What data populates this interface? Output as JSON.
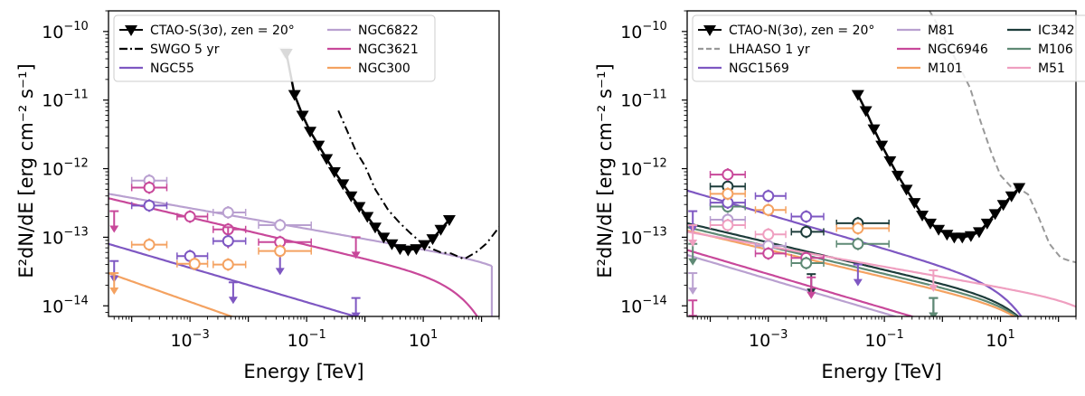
{
  "chart_data": [
    {
      "type": "line",
      "xscale": "log",
      "yscale": "log",
      "xlim": [
        4e-05,
        200
      ],
      "ylim": [
        7e-15,
        2e-10
      ],
      "xlabel": "Energy [TeV]",
      "ylabel": "E²dN/dE [erg cm⁻² s⁻¹]",
      "xticks": [
        {
          "v": 0.001,
          "m": "10",
          "e": "−3"
        },
        {
          "v": 0.1,
          "m": "10",
          "e": "−1"
        },
        {
          "v": 10,
          "m": "10",
          "e": "1"
        }
      ],
      "yticks": [
        {
          "v": 1e-14,
          "m": "10",
          "e": "−14"
        },
        {
          "v": 1e-13,
          "m": "10",
          "e": "−13"
        },
        {
          "v": 1e-12,
          "m": "10",
          "e": "−12"
        },
        {
          "v": 1e-11,
          "m": "10",
          "e": "−11"
        },
        {
          "v": 1e-10,
          "m": "10",
          "e": "−10"
        }
      ],
      "legend": {
        "position": "upper-left",
        "columns": 2,
        "entries": [
          {
            "label": "CTAO-S(3σ), zen = 20°",
            "kind": "sensitivity",
            "color": "#000000"
          },
          {
            "label": "NGC6822",
            "kind": "line",
            "color": "#b9a0d0"
          },
          {
            "label": "SWGO 5 yr",
            "kind": "dashdot",
            "color": "#000000"
          },
          {
            "label": "NGC3621",
            "kind": "line",
            "color": "#c8489a"
          },
          {
            "label": "NGC55",
            "kind": "line",
            "color": "#7e57c2"
          },
          {
            "label": "NGC300",
            "kind": "line",
            "color": "#f4a261"
          }
        ]
      },
      "instrument": {
        "name": "CTAO-S(3σ), zen = 20°",
        "color": "#000000",
        "x": [
          0.045,
          0.062,
          0.085,
          0.115,
          0.16,
          0.22,
          0.3,
          0.42,
          0.58,
          0.8,
          1.1,
          1.5,
          2.1,
          2.9,
          4.0,
          5.5,
          7.6,
          10.5,
          14.5,
          20,
          28
        ],
        "y": [
          4.8e-11,
          1.2e-11,
          6e-12,
          3.5e-12,
          2.2e-12,
          1.4e-12,
          9e-13,
          6e-13,
          4e-13,
          2.8e-13,
          2e-13,
          1.4e-13,
          1e-13,
          8e-14,
          6.8e-14,
          6.5e-14,
          6.8e-14,
          7.8e-14,
          9.5e-14,
          1.3e-13,
          1.8e-13
        ],
        "low_energy_extension": {
          "x": [
            0.042,
            0.045
          ],
          "y": [
            5e-11,
            4.8e-11
          ],
          "color": "#c8c8c8"
        }
      },
      "reference": {
        "name": "SWGO 5 yr",
        "style": "dashdot",
        "color": "#000000",
        "x": [
          0.35,
          0.5,
          0.7,
          1.0,
          1.5,
          2.5,
          4,
          6,
          9,
          14,
          20,
          30,
          50,
          80,
          120,
          200
        ],
        "y": [
          7e-12,
          3.5e-12,
          1.8e-12,
          1.1e-12,
          5e-13,
          2.5e-13,
          1.6e-13,
          1.15e-13,
          8.5e-14,
          6.8e-14,
          6e-14,
          5.8e-14,
          4.8e-14,
          6e-14,
          8e-14,
          1.4e-13
        ]
      },
      "series": [
        {
          "name": "NGC6822",
          "color": "#b9a0d0",
          "model": {
            "norm": 4.3e-13,
            "index": 2.15,
            "cutoff": 1000
          },
          "xmax": 150,
          "points": [
            {
              "x": 0.0002,
              "y": 6.7e-13,
              "xerr": [
                0.0001,
                0.0004
              ]
            },
            {
              "x": 0.0045,
              "y": 2.3e-13,
              "xerr": [
                0.0025,
                0.009
              ]
            },
            {
              "x": 0.035,
              "y": 1.5e-13,
              "xerr": [
                0.015,
                0.12
              ]
            }
          ]
        },
        {
          "name": "NGC3621",
          "color": "#c8489a",
          "model": {
            "norm": 3.7e-13,
            "index": 2.2,
            "cutoff": 80
          },
          "xmax": 200,
          "points": [
            {
              "x": 0.0002,
              "y": 5.3e-13,
              "xerr": [
                0.0001,
                0.0004
              ]
            },
            {
              "x": 0.001,
              "y": 2e-13,
              "xerr": [
                0.0006,
                0.002
              ]
            },
            {
              "x": 0.0045,
              "y": 1.3e-13,
              "xerr": [
                0.0025,
                0.009
              ]
            },
            {
              "x": 0.035,
              "y": 8.5e-14,
              "xerr": [
                0.015,
                0.12
              ]
            }
          ],
          "upper_limits": [
            {
              "x": 5e-05,
              "y": 2.4e-13
            },
            {
              "x": 0.0045,
              "y": 1.4e-13
            },
            {
              "x": 0.7,
              "y": 1e-13
            }
          ]
        },
        {
          "name": "NGC55",
          "color": "#7e57c2",
          "model": {
            "norm": 8e-14,
            "index": 2.25,
            "cutoff": 1000
          },
          "xmax": 200,
          "points": [
            {
              "x": 0.0002,
              "y": 2.9e-13,
              "xerr": [
                0.0001,
                0.0004
              ]
            },
            {
              "x": 0.001,
              "y": 5.3e-14,
              "xerr": [
                0.0006,
                0.002
              ]
            },
            {
              "x": 0.0045,
              "y": 8.8e-14,
              "xerr": [
                0.0025,
                0.009
              ]
            }
          ],
          "upper_limits": [
            {
              "x": 5e-05,
              "y": 4.5e-14
            },
            {
              "x": 0.0055,
              "y": 2.2e-14
            },
            {
              "x": 0.7,
              "y": 1.3e-14
            },
            {
              "x": 0.035,
              "y": 5.8e-14
            }
          ]
        },
        {
          "name": "NGC300",
          "color": "#f4a261",
          "model": {
            "norm": 3e-14,
            "index": 2.3,
            "cutoff": 1000
          },
          "xmax": 200,
          "points": [
            {
              "x": 0.0002,
              "y": 7.8e-14,
              "xerr": [
                0.0001,
                0.0004
              ]
            },
            {
              "x": 0.0012,
              "y": 4.1e-14,
              "xerr": [
                0.0006,
                0.002
              ]
            },
            {
              "x": 0.0045,
              "y": 4e-14,
              "xerr": [
                0.0025,
                0.009
              ]
            },
            {
              "x": 0.035,
              "y": 6.3e-14,
              "xerr": [
                0.015,
                0.12
              ]
            }
          ],
          "upper_limits": [
            {
              "x": 5e-05,
              "y": 3e-14
            }
          ]
        }
      ]
    },
    {
      "type": "line",
      "xscale": "log",
      "yscale": "log",
      "xlim": [
        4e-05,
        200
      ],
      "ylim": [
        7e-15,
        2e-10
      ],
      "xlabel": "Energy [TeV]",
      "ylabel": "E²dN/dE [erg cm⁻² s⁻¹]",
      "xticks": [
        {
          "v": 0.001,
          "m": "10",
          "e": "−3"
        },
        {
          "v": 0.1,
          "m": "10",
          "e": "−1"
        },
        {
          "v": 10,
          "m": "10",
          "e": "1"
        }
      ],
      "yticks": [
        {
          "v": 1e-14,
          "m": "10",
          "e": "−14"
        },
        {
          "v": 1e-13,
          "m": "10",
          "e": "−13"
        },
        {
          "v": 1e-12,
          "m": "10",
          "e": "−12"
        },
        {
          "v": 1e-11,
          "m": "10",
          "e": "−11"
        },
        {
          "v": 1e-10,
          "m": "10",
          "e": "−10"
        }
      ],
      "legend": {
        "position": "upper-left",
        "columns": 3,
        "entries": [
          {
            "label": "CTAO-N(3σ), zen = 20°",
            "kind": "sensitivity",
            "color": "#000000"
          },
          {
            "label": "M81",
            "kind": "line",
            "color": "#b9a0d0"
          },
          {
            "label": "IC342",
            "kind": "line",
            "color": "#1d3c3a"
          },
          {
            "label": "LHAASO 1 yr",
            "kind": "dashed",
            "color": "#999999"
          },
          {
            "label": "NGC6946",
            "kind": "line",
            "color": "#c8489a"
          },
          {
            "label": "M106",
            "kind": "line",
            "color": "#5f8a75"
          },
          {
            "label": "NGC1569",
            "kind": "line",
            "color": "#7e57c2"
          },
          {
            "label": "M101",
            "kind": "line",
            "color": "#f4a261"
          },
          {
            "label": "M51",
            "kind": "line",
            "color": "#ef9fc0"
          }
        ]
      },
      "instrument": {
        "name": "CTAO-N(3σ), zen = 20°",
        "color": "#000000",
        "x": [
          0.035,
          0.048,
          0.066,
          0.09,
          0.125,
          0.17,
          0.24,
          0.33,
          0.45,
          0.62,
          0.86,
          1.2,
          1.6,
          2.2,
          3.1,
          4.3,
          5.9,
          8.1,
          11.2,
          15.5,
          21
        ],
        "y": [
          1.2e-11,
          7e-12,
          3.8e-12,
          2.2e-12,
          1.3e-12,
          8e-13,
          5e-13,
          3.2e-13,
          2.1e-13,
          1.6e-13,
          1.3e-13,
          1.1e-13,
          1e-13,
          1e-13,
          1.05e-13,
          1.2e-13,
          1.6e-13,
          2.2e-13,
          3e-13,
          4e-13,
          5.3e-13
        ]
      },
      "reference": {
        "name": "LHAASO 1 yr",
        "style": "dashed",
        "color": "#999999",
        "x": [
          0.6,
          0.9,
          1.3,
          2.0,
          3.0,
          4.5,
          7,
          10,
          15,
          22,
          30,
          45,
          70,
          110,
          160,
          200
        ],
        "y": [
          2e-10,
          1.1e-10,
          6e-11,
          3e-11,
          1.5e-11,
          5e-12,
          1.7e-12,
          8e-13,
          5.5e-13,
          5e-13,
          4.2e-13,
          2e-13,
          8e-14,
          5e-14,
          4.5e-14,
          4.3e-14
        ]
      },
      "series": [
        {
          "name": "M81",
          "color": "#b9a0d0",
          "model": {
            "norm": 5.5e-14,
            "index": 2.25,
            "cutoff": 1000
          },
          "xmax": 200,
          "points": [
            {
              "x": 0.0002,
              "y": 1.8e-13,
              "xerr": [
                0.0001,
                0.0004
              ]
            },
            {
              "x": 0.001,
              "y": 7.5e-14,
              "xerr": [
                0.0006,
                0.002
              ]
            }
          ],
          "upper_limits": [
            {
              "x": 5e-05,
              "y": 3e-14
            }
          ]
        },
        {
          "name": "IC342",
          "color": "#1d3c3a",
          "model": {
            "norm": 1.6e-13,
            "index": 2.2,
            "cutoff": 40
          },
          "xmax": 200,
          "points": [
            {
              "x": 0.0002,
              "y": 5.5e-13,
              "xerr": [
                0.0001,
                0.0004
              ]
            },
            {
              "x": 0.0045,
              "y": 1.2e-13,
              "xerr": [
                0.0025,
                0.009
              ]
            },
            {
              "x": 0.035,
              "y": 1.6e-13,
              "xerr": [
                0.015,
                0.12
              ]
            }
          ],
          "upper_limits": [
            {
              "x": 0.0055,
              "y": 2.9e-14
            },
            {
              "x": 0.7,
              "y": 1.3e-14
            }
          ]
        },
        {
          "name": "NGC6946",
          "color": "#c8489a",
          "model": {
            "norm": 6.5e-14,
            "index": 2.25,
            "cutoff": 1000
          },
          "xmax": 200,
          "points": [
            {
              "x": 0.0002,
              "y": 8.2e-13,
              "xerr": [
                0.0001,
                0.0004
              ]
            },
            {
              "x": 0.001,
              "y": 5.8e-14,
              "xerr": [
                0.0006,
                0.002
              ]
            },
            {
              "x": 0.0045,
              "y": 5e-14,
              "xerr": [
                0.0025,
                0.009
              ]
            }
          ],
          "upper_limits": [
            {
              "x": 5e-05,
              "y": 1.2e-14
            },
            {
              "x": 0.0055,
              "y": 2.6e-14
            }
          ]
        },
        {
          "name": "M106",
          "color": "#5f8a75",
          "model": {
            "norm": 1.4e-13,
            "index": 2.2,
            "cutoff": 50
          },
          "xmax": 200,
          "points": [
            {
              "x": 0.0002,
              "y": 2.8e-13,
              "xerr": [
                0.0001,
                0.0004
              ]
            },
            {
              "x": 0.0045,
              "y": 4.2e-14,
              "xerr": [
                0.0025,
                0.009
              ]
            },
            {
              "x": 0.035,
              "y": 8e-14,
              "xerr": [
                0.015,
                0.12
              ]
            }
          ],
          "upper_limits": [
            {
              "x": 5e-05,
              "y": 8e-14
            },
            {
              "x": 0.7,
              "y": 1.3e-14
            }
          ]
        },
        {
          "name": "NGC1569",
          "color": "#7e57c2",
          "model": {
            "norm": 4.8e-13,
            "index": 2.25,
            "cutoff": 25
          },
          "xmax": 200,
          "points": [
            {
              "x": 0.0002,
              "y": 3.2e-13,
              "xerr": [
                0.0001,
                0.0004
              ]
            },
            {
              "x": 0.001,
              "y": 4e-13,
              "xerr": [
                0.0006,
                0.002
              ]
            },
            {
              "x": 0.0045,
              "y": 2e-13,
              "xerr": [
                0.0025,
                0.009
              ]
            }
          ],
          "upper_limits": [
            {
              "x": 5e-05,
              "y": 2.4e-13
            },
            {
              "x": 0.035,
              "y": 4e-14
            }
          ]
        },
        {
          "name": "M101",
          "color": "#f4a261",
          "model": {
            "norm": 1.25e-13,
            "index": 2.2,
            "cutoff": 60
          },
          "xmax": 200,
          "points": [
            {
              "x": 0.0002,
              "y": 4.3e-13,
              "xerr": [
                0.0001,
                0.0004
              ]
            },
            {
              "x": 0.001,
              "y": 2.5e-13,
              "xerr": [
                0.0006,
                0.002
              ]
            },
            {
              "x": 0.035,
              "y": 1.35e-13,
              "xerr": [
                0.015,
                0.12
              ]
            }
          ]
        },
        {
          "name": "M51",
          "color": "#ef9fc0",
          "model": {
            "norm": 1.2e-13,
            "index": 2.15,
            "cutoff": 1000
          },
          "xmax": 200,
          "points": [
            {
              "x": 0.0002,
              "y": 1.5e-13,
              "xerr": [
                0.0001,
                0.0004
              ]
            },
            {
              "x": 0.001,
              "y": 1.1e-13,
              "xerr": [
                0.0006,
                0.002
              ]
            }
          ],
          "upper_limits": [
            {
              "x": 5e-05,
              "y": 1.5e-13
            },
            {
              "x": 0.7,
              "y": 3.3e-14
            }
          ]
        }
      ]
    }
  ]
}
